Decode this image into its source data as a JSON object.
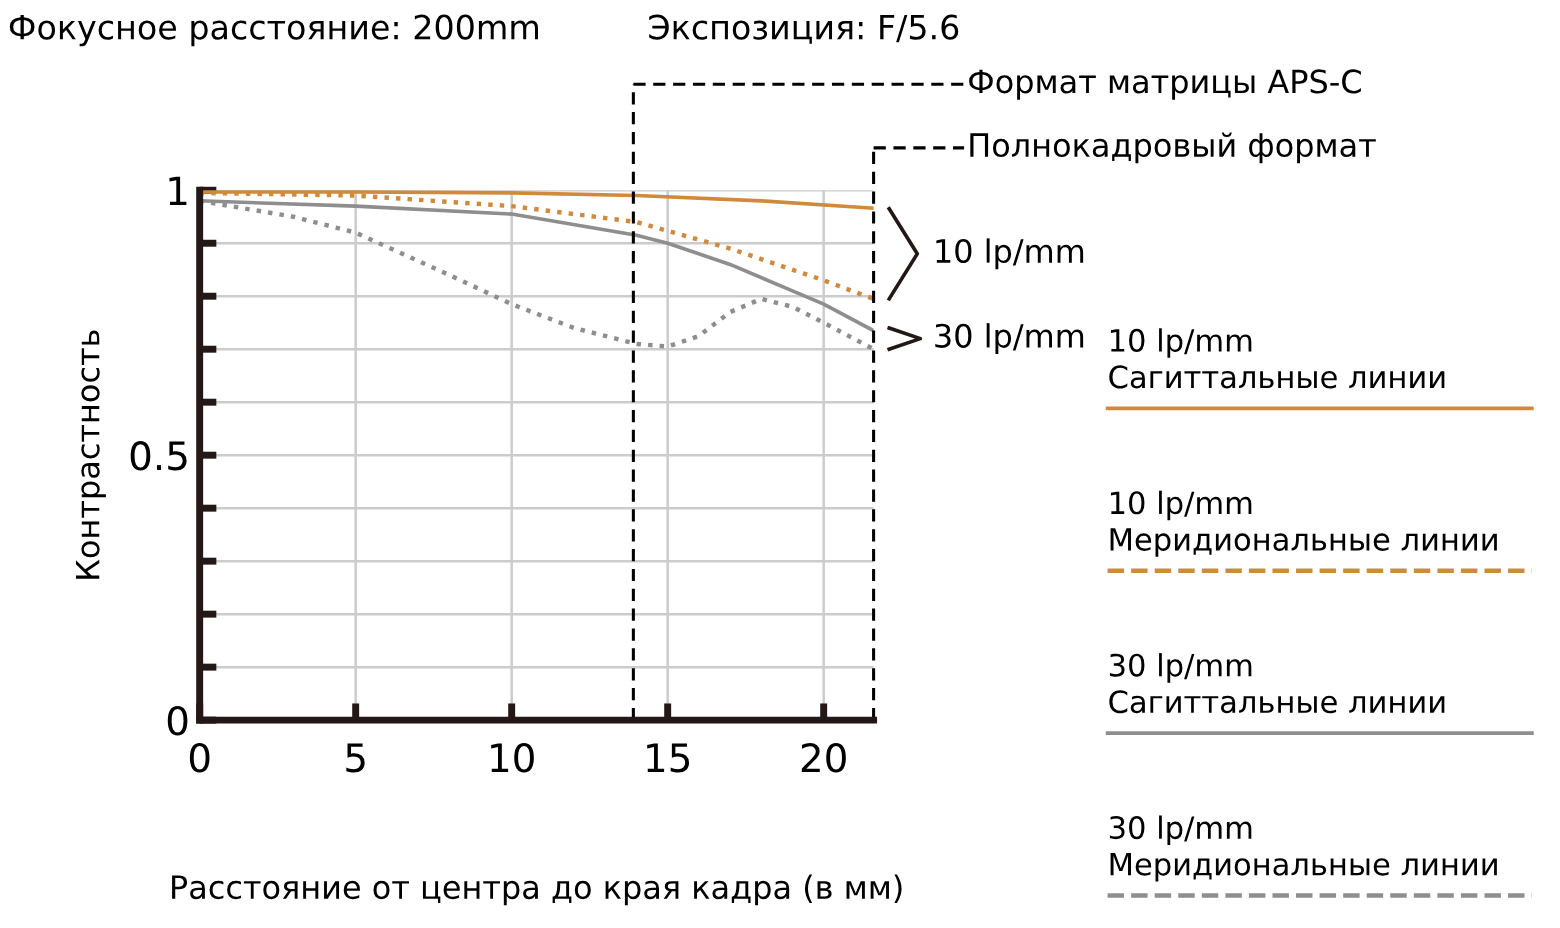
{
  "chart_data": {
    "type": "line",
    "title": "Фокусное расстояние: 200mm",
    "subtitle": "Экспозиция: F/5.6",
    "xlabel": "Расстояние от центра до края кадра (в мм)",
    "ylabel": "Контрастность",
    "xlim": [
      0,
      21.6
    ],
    "ylim": [
      0,
      1
    ],
    "xticks": [
      0,
      5,
      10,
      15,
      20
    ],
    "yticks": [
      0,
      {
        "value": 0.1,
        "label": null
      },
      {
        "value": 0.2,
        "label": null
      },
      {
        "value": 0.3,
        "label": null
      },
      {
        "value": 0.4,
        "label": null
      },
      0.5,
      {
        "value": 0.6,
        "label": null
      },
      {
        "value": 0.7,
        "label": null
      },
      {
        "value": 0.8,
        "label": null
      },
      {
        "value": 0.9,
        "label": null
      },
      1
    ],
    "grid": true,
    "legend": "right",
    "series": [
      {
        "name": "10 lp/mm\nСагиттальные линии",
        "color": "#d08a3c",
        "line_style": "solid",
        "x": [
          0,
          5,
          10,
          14,
          18,
          21.6
        ],
        "values": [
          0.997,
          0.997,
          0.995,
          0.99,
          0.98,
          0.966
        ]
      },
      {
        "name": "10 lp/mm\nМеридиональные линии",
        "color": "#d08a3c",
        "line_style": "dotted",
        "x": [
          0,
          5,
          10,
          14,
          17,
          20,
          21.6
        ],
        "values": [
          0.995,
          0.99,
          0.97,
          0.94,
          0.89,
          0.83,
          0.795
        ]
      },
      {
        "name": "30 lp/mm\nСагиттальные линии",
        "color": "#8e8e8e",
        "line_style": "solid",
        "x": [
          0,
          5,
          10,
          14,
          15,
          17,
          19,
          20,
          21.6
        ],
        "values": [
          0.98,
          0.97,
          0.955,
          0.915,
          0.9,
          0.86,
          0.81,
          0.785,
          0.735
        ]
      },
      {
        "name": "30 lp/mm\nМеридиональные линии",
        "color": "#8e8e8e",
        "line_style": "dotted",
        "x": [
          0,
          3,
          5,
          8,
          10,
          12,
          14,
          15,
          16,
          17,
          18,
          19,
          20,
          21.6
        ],
        "values": [
          0.98,
          0.95,
          0.92,
          0.84,
          0.785,
          0.74,
          0.71,
          0.705,
          0.725,
          0.77,
          0.795,
          0.78,
          0.75,
          0.7
        ]
      }
    ],
    "ref_lines": [
      {
        "axis": "x",
        "value": 13.9,
        "label": "Формат матрицы APS-C",
        "color": "#000000",
        "line_style": "dashed"
      },
      {
        "axis": "x",
        "value": 21.6,
        "label": "Полнокадровый формат",
        "color": "#000000",
        "line_style": "dashed"
      }
    ],
    "annotations": [
      {
        "text": "10 lp/mm",
        "x": 21.6,
        "y": 0.88
      },
      {
        "text": "30 lp/mm",
        "x": 21.6,
        "y": 0.72
      }
    ]
  }
}
